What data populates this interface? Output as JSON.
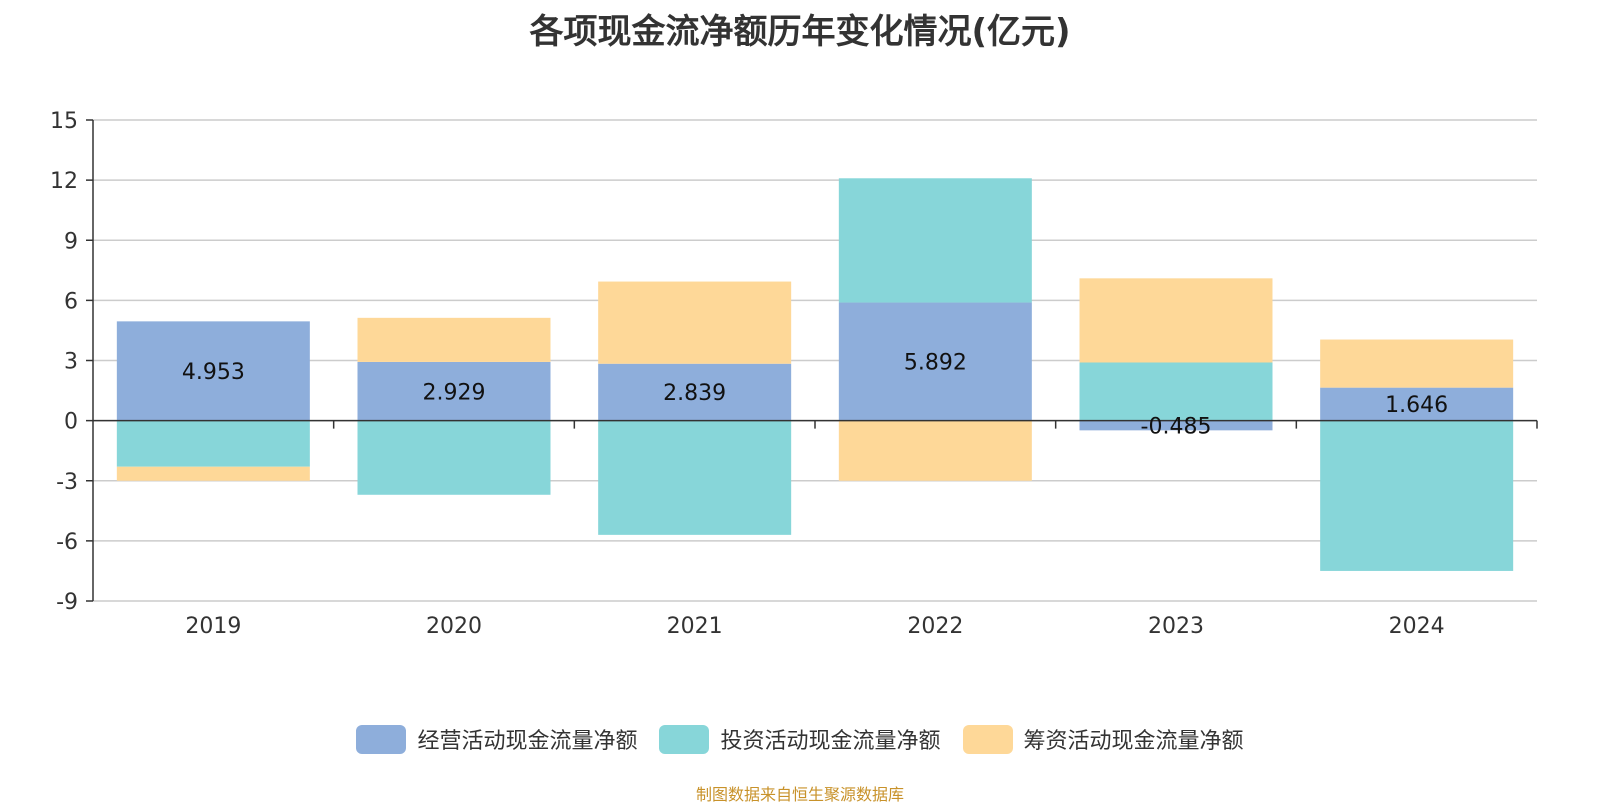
{
  "title": "各项现金流净额历年变化情况(亿元)",
  "source": "制图数据来自恒生聚源数据库",
  "colors": {
    "operating": "#8eaedb",
    "investing": "#87d6d9",
    "financing": "#fed898"
  },
  "chart_data": {
    "type": "bar",
    "stacked": true,
    "title": "各项现金流净额历年变化情况(亿元)",
    "categories": [
      "2019",
      "2020",
      "2021",
      "2022",
      "2023",
      "2024"
    ],
    "ylim": [
      -9,
      15
    ],
    "yticks": [
      15,
      12,
      9,
      6,
      3,
      0,
      -3,
      -6,
      -9
    ],
    "grid": true,
    "legend_position": "bottom",
    "series": [
      {
        "name": "经营活动现金流量净额",
        "color": "#8eaedb",
        "values": [
          4.953,
          2.929,
          2.839,
          5.892,
          -0.485,
          1.646
        ],
        "labels": [
          "4.953",
          "2.929",
          "2.839",
          "5.892",
          "-0.485",
          "1.646"
        ]
      },
      {
        "name": "投资活动现金流量净额",
        "color": "#87d6d9",
        "values": [
          -2.3,
          -3.7,
          -5.7,
          6.2,
          2.9,
          -7.5
        ]
      },
      {
        "name": "筹资活动现金流量净额",
        "color": "#fed898",
        "values": [
          -0.7,
          2.2,
          4.1,
          -3.0,
          4.2,
          2.4
        ]
      }
    ]
  }
}
